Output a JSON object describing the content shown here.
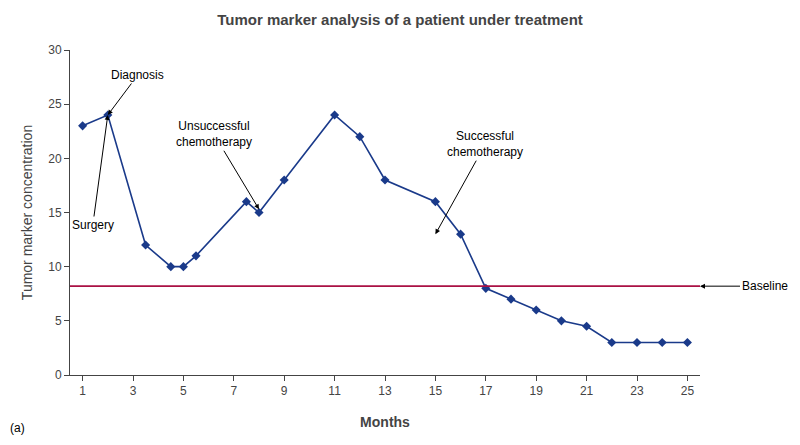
{
  "chart_data": {
    "type": "line",
    "title": "Tumor marker analysis of a patient under treatment",
    "xlabel": "Months",
    "ylabel": "Tumor marker concentration",
    "x": [
      1,
      2,
      3.5,
      4.5,
      5,
      5.5,
      7.5,
      8,
      9,
      11,
      12,
      13,
      15,
      16,
      17,
      18,
      19,
      20,
      21,
      22,
      23,
      24,
      25
    ],
    "values": [
      23,
      24,
      12,
      10,
      10,
      11,
      16,
      15,
      18,
      24,
      22,
      18,
      16,
      13,
      8,
      7,
      6,
      5,
      4.5,
      3,
      3,
      3,
      3
    ],
    "color": "#1a3a8a",
    "marker": "diamond",
    "xlim": [
      0.5,
      25.5
    ],
    "ylim": [
      0,
      30
    ],
    "xticks": [
      1,
      3,
      5,
      7,
      9,
      11,
      13,
      15,
      17,
      19,
      21,
      23,
      25
    ],
    "yticks": [
      0,
      5,
      10,
      15,
      20,
      25,
      30
    ],
    "grid": false,
    "reference_lines": [
      {
        "y": 8.2,
        "label": "Baseline",
        "color": "#aa1144"
      }
    ],
    "annotations": [
      {
        "text": "Diagnosis",
        "x": 2,
        "y": 24
      },
      {
        "text": "Surgery",
        "x": 2,
        "y": 24
      },
      {
        "text": "Unsuccessful\nchemotherapy",
        "x": 8,
        "y": 15.3
      },
      {
        "text": "Successful\nchemotherapy",
        "x": 15,
        "y": 13
      },
      {
        "text": "(a)"
      }
    ]
  }
}
